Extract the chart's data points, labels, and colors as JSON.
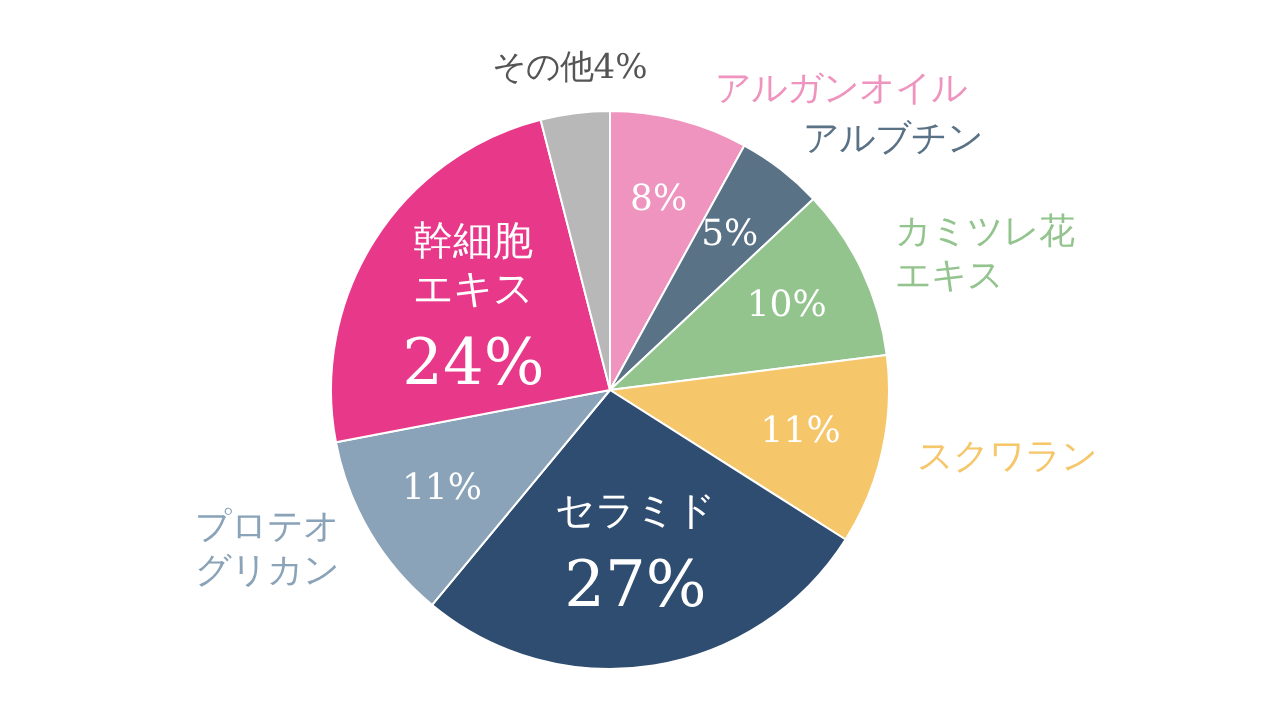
{
  "chart_data": {
    "type": "pie",
    "categories": [
      "アルガンオイル",
      "アルブチン",
      "カミツレ花エキス",
      "スクワラン",
      "セラミド",
      "プロテオグリカン",
      "幹細胞エキス",
      "その他"
    ],
    "values": [
      8,
      5,
      10,
      11,
      27,
      11,
      24,
      4
    ],
    "colors": [
      "#ee94be",
      "#5a7286",
      "#93c48e",
      "#f5c66a",
      "#2f4d70",
      "#8aa3b8",
      "#e8388a",
      "#b8b8b8"
    ],
    "value_labels": [
      "8%",
      "5%",
      "10%",
      "11%",
      "27%",
      "11%",
      "24%",
      "4%"
    ],
    "legend": false
  }
}
